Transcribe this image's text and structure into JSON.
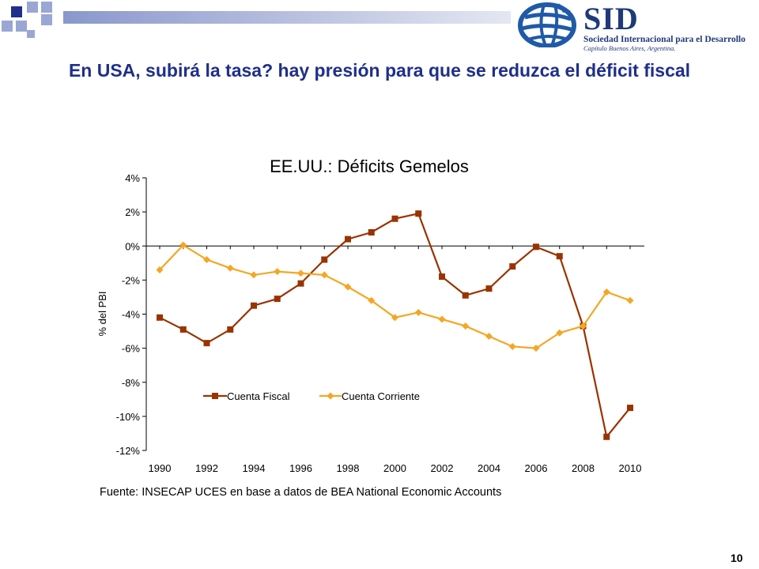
{
  "slide": {
    "title": "En USA, subirá la tasa? hay presión para que se reduzca el déficit fiscal",
    "page_number": "10"
  },
  "logo": {
    "name": "SID",
    "line1": "Sociedad Internacional para el Desarrollo",
    "line2": "Capítulo Buenos Aires, Argentina."
  },
  "colors": {
    "title": "#1f2f8a",
    "fiscal": "#993300",
    "corriente": "#f5a623"
  },
  "chart_data": {
    "type": "line",
    "title": "EE.UU.: Déficits Gemelos",
    "ylabel": "% del PBI",
    "xlabel": "",
    "source": "Fuente: INSECAP UCES en base a datos de BEA National Economic Accounts",
    "x": [
      1990,
      1991,
      1992,
      1993,
      1994,
      1995,
      1996,
      1997,
      1998,
      1999,
      2000,
      2001,
      2002,
      2003,
      2004,
      2005,
      2006,
      2007,
      2008,
      2009,
      2010
    ],
    "xlim": [
      1990,
      2010
    ],
    "ylim": [
      -12,
      4
    ],
    "x_ticks": [
      1990,
      1992,
      1994,
      1996,
      1998,
      2000,
      2002,
      2004,
      2006,
      2008,
      2010
    ],
    "y_ticks": [
      4,
      2,
      0,
      -2,
      -4,
      -6,
      -8,
      -10,
      -12
    ],
    "y_tick_labels": [
      "4%",
      "2%",
      "0%",
      "-2%",
      "-4%",
      "-6%",
      "-8%",
      "-10%",
      "-12%"
    ],
    "legend_position": "lower-left",
    "grid": false,
    "series": [
      {
        "name": "Cuenta Fiscal",
        "marker": "square",
        "color": "#993300",
        "values": [
          -4.2,
          -4.9,
          -5.7,
          -4.9,
          -3.5,
          -3.1,
          -2.2,
          -0.8,
          0.4,
          0.8,
          1.6,
          1.9,
          -1.8,
          -2.9,
          -2.5,
          -1.2,
          -0.05,
          -0.6,
          -4.7,
          -11.2,
          -9.5
        ]
      },
      {
        "name": "Cuenta Corriente",
        "marker": "diamond",
        "color": "#f5a623",
        "values": [
          -1.4,
          0.05,
          -0.8,
          -1.3,
          -1.7,
          -1.5,
          -1.6,
          -1.7,
          -2.4,
          -3.2,
          -4.2,
          -3.9,
          -4.3,
          -4.7,
          -5.3,
          -5.9,
          -6.0,
          -5.1,
          -4.7,
          -2.7,
          -3.2
        ]
      }
    ]
  }
}
